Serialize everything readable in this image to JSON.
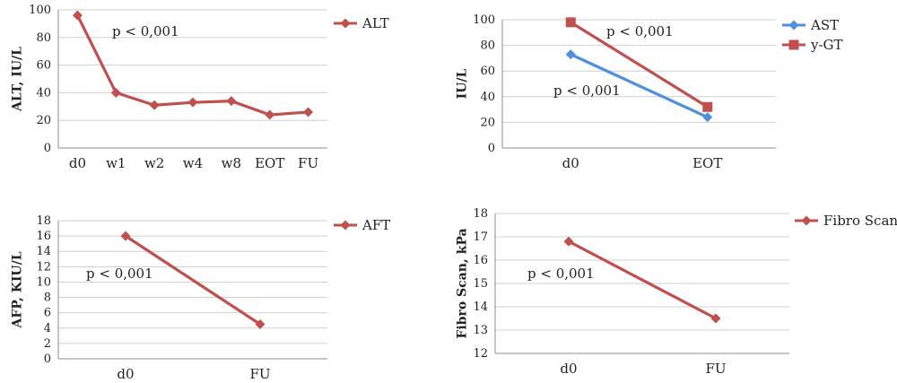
{
  "chart_data": [
    {
      "type": "line",
      "ylabel": "ALT, IU/L",
      "categories": [
        "d0",
        "w1",
        "w2",
        "w4",
        "w8",
        "EOT",
        "FU"
      ],
      "ylim": [
        0,
        100
      ],
      "yticks": [
        0,
        20,
        40,
        60,
        80,
        100
      ],
      "grid": true,
      "legend_position": "top-right",
      "series": [
        {
          "name": "ALT",
          "color": "#c0504d",
          "marker": "diamond",
          "values": [
            96,
            40,
            31,
            33,
            34,
            24,
            26
          ]
        }
      ],
      "annotations": [
        "p < 0,001"
      ]
    },
    {
      "type": "line",
      "ylabel": "IU/L",
      "categories": [
        "d0",
        "EOT"
      ],
      "ylim": [
        0,
        100
      ],
      "yticks": [
        0,
        20,
        40,
        60,
        80,
        100
      ],
      "grid": true,
      "legend_position": "top-right",
      "series": [
        {
          "name": "AST",
          "color": "#4f8fdc",
          "marker": "diamond",
          "values": [
            73,
            24
          ]
        },
        {
          "name": "y-GT",
          "color": "#c0504d",
          "marker": "square",
          "values": [
            98,
            32
          ]
        }
      ],
      "annotations": [
        "p < 0,001",
        "p < 0,001"
      ]
    },
    {
      "type": "line",
      "ylabel": "AFP, KIU/L",
      "categories": [
        "d0",
        "FU"
      ],
      "ylim": [
        0,
        18
      ],
      "yticks": [
        0,
        2,
        4,
        6,
        8,
        10,
        12,
        14,
        16,
        18
      ],
      "grid": true,
      "legend_position": "top-right",
      "series": [
        {
          "name": "AFT",
          "color": "#c0504d",
          "marker": "diamond",
          "values": [
            16,
            4.5
          ]
        }
      ],
      "annotations": [
        "p < 0,001"
      ]
    },
    {
      "type": "line",
      "ylabel": "Fibro Scan, kPa",
      "categories": [
        "d0",
        "FU"
      ],
      "ylim": [
        12,
        18
      ],
      "yticks": [
        12,
        13,
        14,
        15,
        16,
        17,
        18
      ],
      "grid": true,
      "legend_position": "top-right",
      "series": [
        {
          "name": "Fibro Scan",
          "color": "#c0504d",
          "marker": "diamond",
          "values": [
            16.8,
            13.5
          ]
        }
      ],
      "annotations": [
        "p < 0,001"
      ]
    }
  ]
}
